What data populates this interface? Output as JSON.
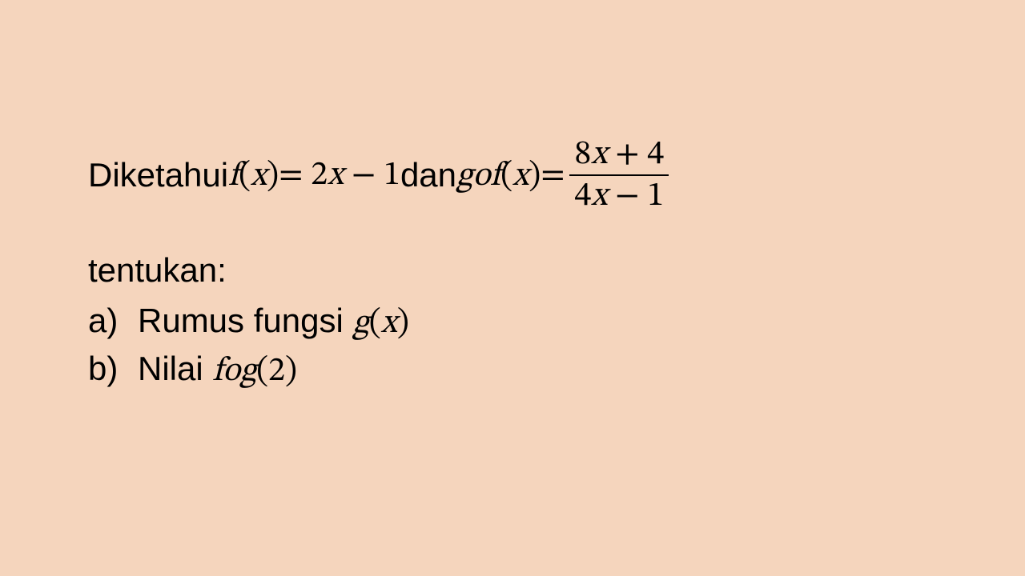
{
  "background_color": "#f5d5bd",
  "text_color": "#000000",
  "body_font_family": "Segoe UI, Helvetica Neue, Arial, sans-serif",
  "math_font_family": "Cambria Math, STIX Two Math, Times New Roman, serif",
  "font_size_pt": 32,
  "font_weight": 300,
  "line1": {
    "word_diketahui": "Diketahui ",
    "f_of_x": "f(x)",
    "eq1_rhs": " = 2x − 1",
    "word_dan": " dan  ",
    "gof_of_x": "gof(x)",
    "eq2_eq": " = ",
    "fraction": {
      "numerator": "8x + 4",
      "denominator": "4x − 1"
    }
  },
  "tentukan": "tentukan:",
  "items": [
    {
      "label": "a)",
      "text_prefix": "Rumus fungsi ",
      "math": "g(x)"
    },
    {
      "label": "b)",
      "text_prefix": "Nilai ",
      "math": "fog(2)"
    }
  ]
}
